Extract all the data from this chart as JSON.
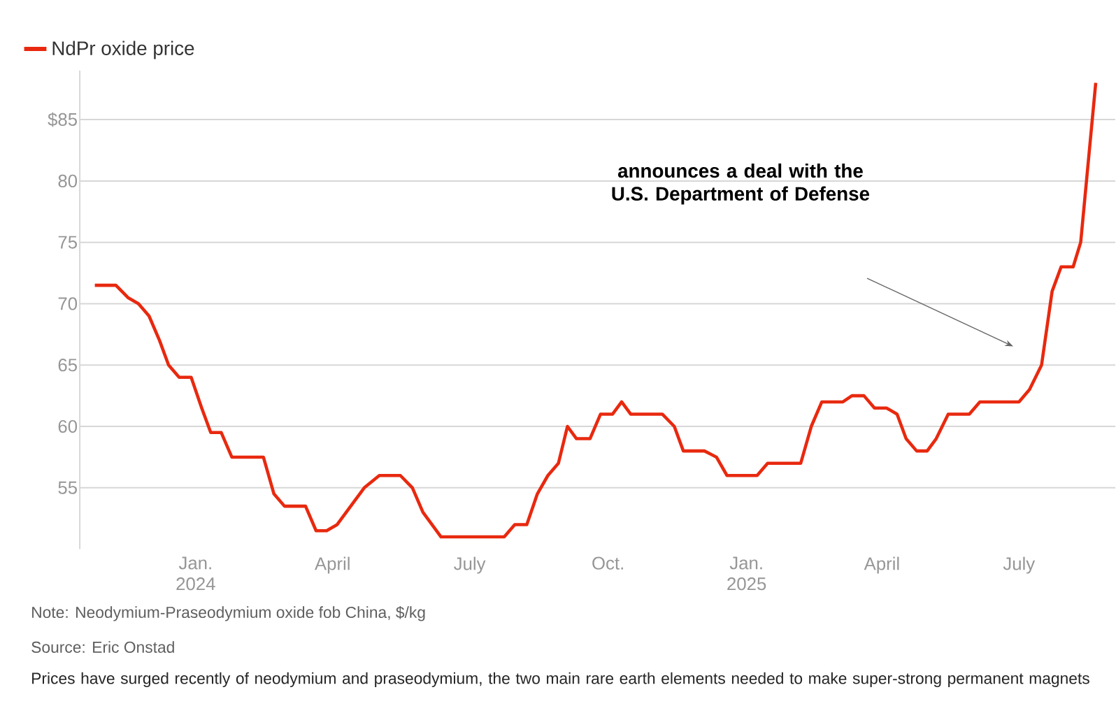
{
  "chart_data": {
    "type": "line",
    "x": [
      "2023-10-26",
      "2023-11-09",
      "2023-11-17",
      "2023-11-24",
      "2023-12-01",
      "2023-12-08",
      "2023-12-14",
      "2023-12-21",
      "2023-12-29",
      "2024-01-05",
      "2024-01-11",
      "2024-01-18",
      "2024-01-25",
      "2024-02-15",
      "2024-02-22",
      "2024-02-29",
      "2024-03-14",
      "2024-03-21",
      "2024-03-28",
      "2024-04-04",
      "2024-04-13",
      "2024-04-22",
      "2024-05-02",
      "2024-05-16",
      "2024-05-24",
      "2024-05-31",
      "2024-06-12",
      "2024-07-24",
      "2024-07-31",
      "2024-08-08",
      "2024-08-15",
      "2024-08-22",
      "2024-08-29",
      "2024-09-04",
      "2024-09-10",
      "2024-09-19",
      "2024-09-26",
      "2024-10-04",
      "2024-10-10",
      "2024-10-16",
      "2024-11-06",
      "2024-11-14",
      "2024-11-20",
      "2024-12-04",
      "2024-12-12",
      "2024-12-19",
      "2025-01-08",
      "2025-01-15",
      "2025-02-06",
      "2025-02-13",
      "2025-02-20",
      "2025-03-06",
      "2025-03-12",
      "2025-03-20",
      "2025-03-27",
      "2025-04-04",
      "2025-04-11",
      "2025-04-17",
      "2025-04-24",
      "2025-05-01",
      "2025-05-07",
      "2025-05-15",
      "2025-05-29",
      "2025-06-05",
      "2025-07-01",
      "2025-07-08",
      "2025-07-16",
      "2025-07-23",
      "2025-07-29",
      "2025-08-06",
      "2025-08-11",
      "2025-08-21"
    ],
    "series": [
      {
        "name": "NdPr oxide price",
        "color": "#e8290f",
        "values": [
          71.5,
          71.5,
          70.5,
          70,
          69,
          67,
          65,
          64,
          64,
          61.5,
          59.5,
          59.5,
          57.5,
          57.5,
          54.5,
          53.5,
          53.5,
          51.5,
          51.5,
          52,
          53.5,
          55,
          56,
          56,
          55,
          53,
          51,
          51,
          52,
          52,
          54.5,
          56,
          57,
          60,
          59,
          59,
          61,
          61,
          62,
          61,
          61,
          60,
          58,
          58,
          57.5,
          56,
          56,
          57,
          57,
          60,
          62,
          62,
          62.5,
          62.5,
          61.5,
          61.5,
          61,
          59,
          58,
          58,
          59,
          61,
          61,
          62,
          62,
          63,
          65,
          71,
          73,
          73,
          75,
          88
        ]
      }
    ],
    "xlim": [
      "2023-10-16",
      "2025-09-03"
    ],
    "xticks": [
      {
        "value": "2024-01-01",
        "label": "Jan. 2024"
      },
      {
        "value": "2024-04-01",
        "label": "April"
      },
      {
        "value": "2024-07-01",
        "label": "July"
      },
      {
        "value": "2024-10-01",
        "label": "Oct."
      },
      {
        "value": "2025-01-01",
        "label": "Jan. 2025"
      },
      {
        "value": "2025-04-01",
        "label": "April"
      },
      {
        "value": "2025-07-01",
        "label": "July"
      }
    ],
    "yticks": [
      {
        "value": 55,
        "label": "55"
      },
      {
        "value": 60,
        "label": "60"
      },
      {
        "value": 65,
        "label": "65"
      },
      {
        "value": 70,
        "label": "70"
      },
      {
        "value": 75,
        "label": "75"
      },
      {
        "value": 80,
        "label": "80"
      },
      {
        "value": 85,
        "label": "$85"
      }
    ],
    "ylim": [
      50,
      89
    ],
    "grid": "y",
    "legend": "top left",
    "line_style": "solid",
    "annotations": [
      "announces a deal with the U.S. Department of Defense",
      "Note: Neodymium-Praseodymium oxide fob China, $/kg",
      "Source: Eric Onstad",
      "Prices have surged recently of neodymium and praseodymium, the two main rare earth elements needed to make super-strong permanent magnets"
    ]
  }
}
